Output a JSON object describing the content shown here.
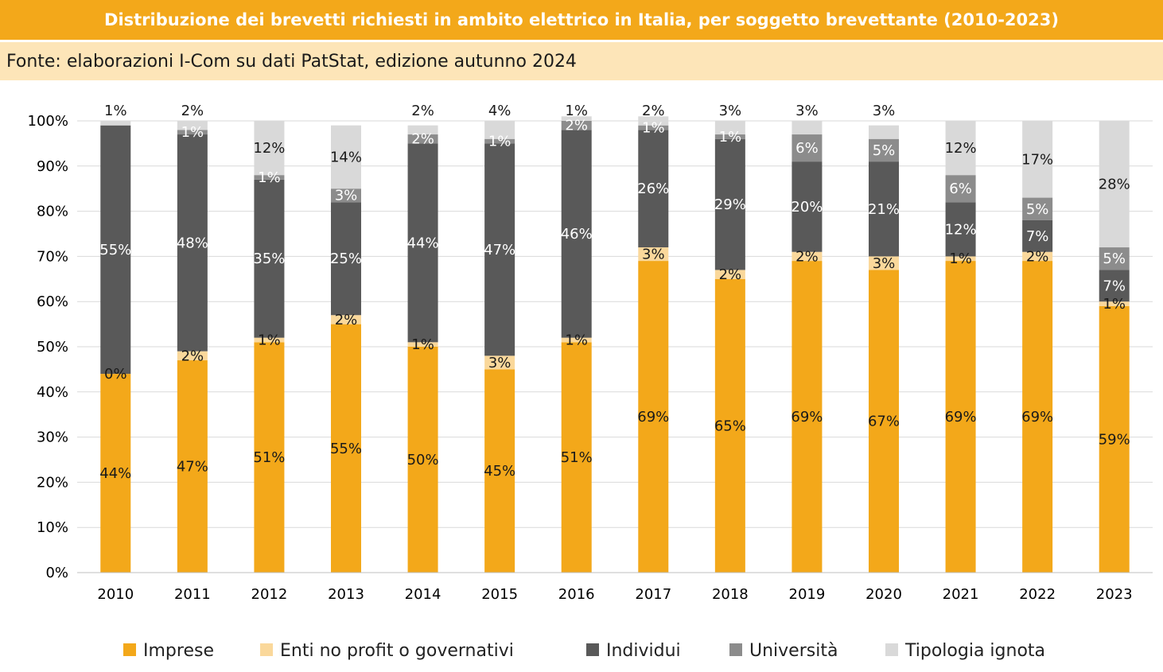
{
  "title": "Distribuzione dei brevetti richiesti in ambito elettrico in Italia, per soggetto brevettante (2010-2023)",
  "source": "Fonte: elaborazioni I-Com su dati PatStat, edizione autunno 2024",
  "colors": {
    "Imprese": "#f3a81a",
    "Enti no profit o governativi": "#fad89b",
    "Individui": "#595959",
    "Università": "#8c8c8c",
    "Tipologia ignota": "#d9d9d9"
  },
  "chart_data": {
    "type": "bar",
    "stacked": true,
    "categories": [
      "2010",
      "2011",
      "2012",
      "2013",
      "2014",
      "2015",
      "2016",
      "2017",
      "2018",
      "2019",
      "2020",
      "2021",
      "2022",
      "2023"
    ],
    "series": [
      {
        "name": "Imprese",
        "values": [
          44,
          47,
          51,
          55,
          50,
          45,
          51,
          69,
          65,
          69,
          67,
          69,
          69,
          59
        ],
        "labels": [
          "44%",
          "47%",
          "51%",
          "55%",
          "50%",
          "45%",
          "51%",
          "69%",
          "65%",
          "69%",
          "67%",
          "69%",
          "69%",
          "59%"
        ]
      },
      {
        "name": "Enti no profit o governativi",
        "values": [
          0,
          2,
          1,
          2,
          1,
          3,
          1,
          3,
          2,
          2,
          3,
          1,
          2,
          1
        ],
        "labels": [
          "0%",
          "2%",
          "1%",
          "2%",
          "1%",
          "3%",
          "1%",
          "3%",
          "2%",
          "2%",
          "3%",
          "1%",
          "2%",
          "1%"
        ]
      },
      {
        "name": "Individui",
        "values": [
          55,
          48,
          35,
          25,
          44,
          47,
          46,
          26,
          29,
          20,
          21,
          12,
          7,
          7
        ],
        "labels": [
          "55%",
          "48%",
          "35%",
          "25%",
          "44%",
          "47%",
          "46%",
          "26%",
          "29%",
          "20%",
          "21%",
          "12%",
          "7%",
          "7%"
        ]
      },
      {
        "name": "Università",
        "values": [
          0,
          1,
          1,
          3,
          2,
          1,
          2,
          1,
          1,
          6,
          5,
          6,
          5,
          5
        ],
        "labels": [
          "",
          "1%",
          "1%",
          "3%",
          "2%",
          "1%",
          "2%",
          "1%",
          "1%",
          "6%",
          "5%",
          "6%",
          "5%",
          "5%"
        ]
      },
      {
        "name": "Tipologia ignota",
        "values": [
          1,
          2,
          12,
          14,
          2,
          4,
          1,
          2,
          3,
          3,
          3,
          12,
          17,
          28
        ],
        "labels": [
          "1%",
          "2%",
          "12%",
          "14%",
          "2%",
          "4%",
          "1%",
          "2%",
          "3%",
          "3%",
          "3%",
          "12%",
          "17%",
          "28%"
        ]
      }
    ],
    "y_ticks": [
      "0%",
      "10%",
      "20%",
      "30%",
      "40%",
      "50%",
      "60%",
      "70%",
      "80%",
      "90%",
      "100%"
    ],
    "ylim": [
      0,
      100
    ],
    "legend_position": "bottom",
    "grid": true
  }
}
